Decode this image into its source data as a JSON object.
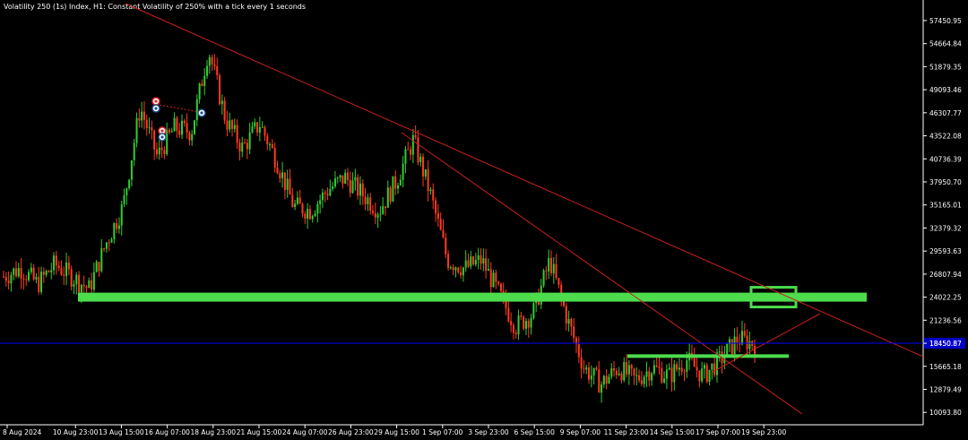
{
  "window_title": "Volatility 250 (1s) Index, H1:  Constant Volatility of 250% with a tick every 1 seconds",
  "colors": {
    "background": "#000000",
    "bull": "#32cd32",
    "bear": "#ff3b1f",
    "axis": "#ffffff",
    "trendline": "#c8201c",
    "zone": "#4cdc4c",
    "bid_line": "#0000ff",
    "current_price_bg": "#0000c8"
  },
  "chart_data": {
    "type": "candlestick",
    "timeframe": "H1",
    "ylim": [
      8600,
      59500
    ],
    "y_ticks": [
      "57450.95",
      "54664.84",
      "51879.35",
      "49093.46",
      "46307.77",
      "43522.08",
      "40736.39",
      "37950.70",
      "35165.01",
      "32379.32",
      "29593.63",
      "26807.94",
      "24022.25",
      "21236.56",
      "18450.87",
      "15665.18",
      "12879.49",
      "10093.80"
    ],
    "x_ticks": [
      "8 Aug 2024",
      "10 Aug 23:00",
      "13 Aug 15:00",
      "16 Aug 07:00",
      "18 Aug 23:00",
      "21 Aug 15:00",
      "24 Aug 07:00",
      "26 Aug 23:00",
      "29 Aug 15:00",
      "1 Sep 07:00",
      "3 Sep 23:00",
      "6 Sep 15:00",
      "9 Sep 07:00",
      "11 Sep 23:00",
      "14 Sep 15:00",
      "17 Sep 07:00",
      "19 Sep 23:00"
    ],
    "price_path": [
      [
        "8 Aug 2024",
        26500
      ],
      [
        "8 Aug 2024 +",
        27500
      ],
      [
        "10 Aug 23:00",
        25600
      ],
      [
        "11 Aug",
        28000
      ],
      [
        "12 Aug",
        26500
      ],
      [
        "13 Aug 15:00",
        25000
      ],
      [
        "14 Aug",
        30500
      ],
      [
        "15 Aug",
        35000
      ],
      [
        "16 Aug 07:00",
        47000
      ],
      [
        "17 Aug",
        41000
      ],
      [
        "17 Aug +",
        44500
      ],
      [
        "18 Aug",
        44000
      ],
      [
        "18 Aug 23:00",
        54000
      ],
      [
        "19 Aug",
        45500
      ],
      [
        "20 Aug",
        42000
      ],
      [
        "21 Aug 15:00",
        45000
      ],
      [
        "22 Aug",
        40500
      ],
      [
        "23 Aug",
        35000
      ],
      [
        "24 Aug 07:00",
        34500
      ],
      [
        "25 Aug",
        37000
      ],
      [
        "26 Aug 23:00",
        38500
      ],
      [
        "28 Aug",
        36500
      ],
      [
        "29 Aug 15:00",
        34500
      ],
      [
        "30 Aug",
        38000
      ],
      [
        "31 Aug",
        43000
      ],
      [
        "1 Sep 07:00",
        36500
      ],
      [
        "2 Sep",
        28500
      ],
      [
        "3 Sep 23:00",
        27500
      ],
      [
        "5 Sep",
        28500
      ],
      [
        "6 Sep 15:00",
        24500
      ],
      [
        "7 Sep",
        20500
      ],
      [
        "8 Sep",
        22000
      ],
      [
        "9 Sep 07:00",
        28500
      ],
      [
        "10 Sep",
        21500
      ],
      [
        "11 Sep",
        15500
      ],
      [
        "11 Sep 23:00",
        13500
      ],
      [
        "13 Sep",
        15500
      ],
      [
        "14 Sep 15:00",
        14000
      ],
      [
        "15 Sep",
        15500
      ],
      [
        "16 Sep",
        14500
      ],
      [
        "17 Sep 07:00",
        16500
      ],
      [
        "18 Sep",
        14500
      ],
      [
        "19 Sep",
        16500
      ],
      [
        "19 Sep 23:00",
        19000
      ],
      [
        "20 Sep",
        18400
      ]
    ],
    "support_zone_price": 24022.25,
    "bid_price": 18450.87,
    "current_price_label": "18450.87"
  }
}
